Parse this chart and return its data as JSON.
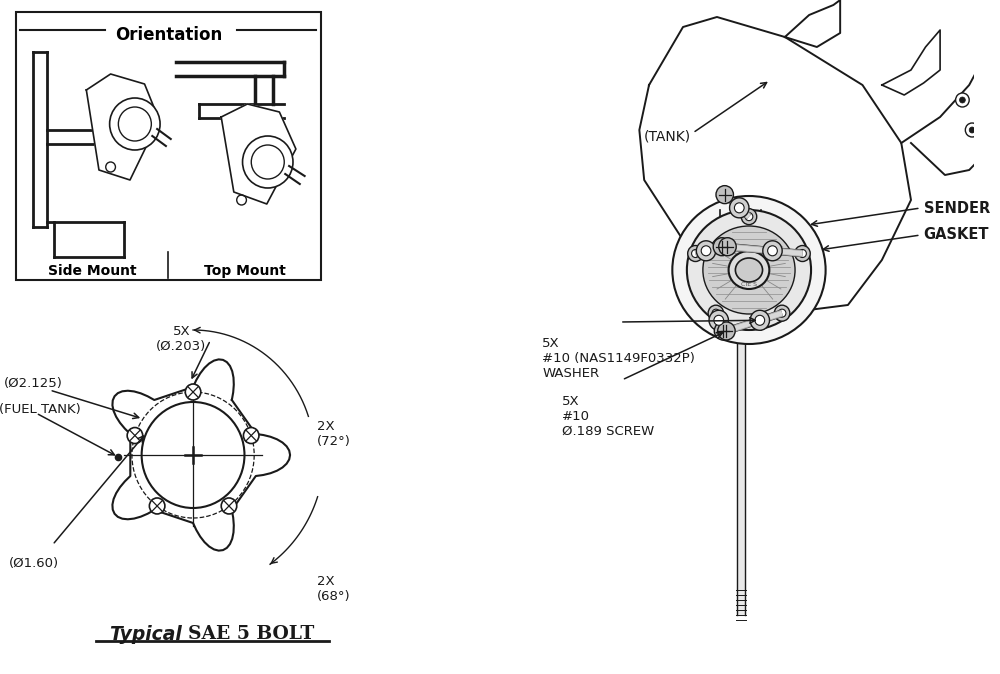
{
  "bg_color": "#ffffff",
  "line_color": "#1a1a1a",
  "gray_color": "#777777",
  "orientation_title": "Orientation",
  "side_mount_label": "Side Mount",
  "top_mount_label": "Top Mount",
  "label_5x_203": "5X\n(Ø.203)",
  "label_2x_72": "2X\n(72°)",
  "label_2x_68": "2X\n(68°)",
  "label_phi2125": "(Ø2.125)",
  "label_phi160": "(Ø1.60)",
  "label_fuel_tank": "(FUEL TANK)",
  "label_tank": "(TANK)",
  "label_washer": "5X\n#10 (NAS1149F0332P)\nWASHER",
  "label_screw": "5X\n#10\nØ.189 SCREW",
  "label_gasket": "GASKET",
  "label_sender": "SENDER"
}
